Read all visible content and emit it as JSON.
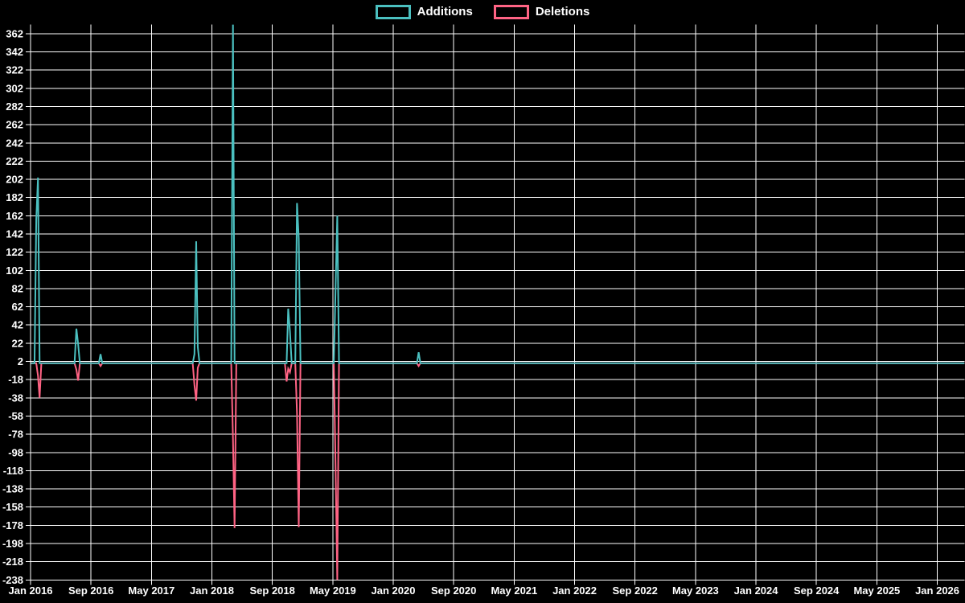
{
  "legend": {
    "items": [
      {
        "label": "Additions",
        "color": "#4bc0c0"
      },
      {
        "label": "Deletions",
        "color": "#ff6384"
      }
    ]
  },
  "chart_data": {
    "type": "line",
    "title": "",
    "background_color": "#000000",
    "grid_color": "#ffffff",
    "text_color": "#ffffff",
    "grid": true,
    "legend_position": "top",
    "x_axis": {
      "start": "2016-01-03",
      "end": "2026-04-19",
      "interval": "weekly",
      "tick_interval_months": 8,
      "tick_labels": [
        "Jan 2016",
        "Sep 2016",
        "May 2017",
        "Jan 2018",
        "Sep 2018",
        "May 2019",
        "Jan 2020",
        "Sep 2020",
        "May 2021",
        "Jan 2022",
        "Sep 2022",
        "May 2023",
        "Jan 2024",
        "Sep 2024",
        "May 2025",
        "Jan 2026"
      ]
    },
    "y_axis": {
      "min": -238,
      "max": 372,
      "tick_step": 20,
      "baseline": 0,
      "tick_labels": [
        "362",
        "342",
        "322",
        "302",
        "282",
        "262",
        "242",
        "222",
        "202",
        "182",
        "162",
        "142",
        "122",
        "102",
        "82",
        "62",
        "42",
        "22",
        "2",
        "-18",
        "-38",
        "-58",
        "-78",
        "-98",
        "-118",
        "-138",
        "-158",
        "-178",
        "-198",
        "-218",
        "-238"
      ]
    },
    "series": [
      {
        "name": "Additions",
        "color": "#4bc0c0",
        "value_key": "additions",
        "default_value": 0
      },
      {
        "name": "Deletions",
        "color": "#ff6384",
        "value_key": "deletions",
        "default_value": 0
      }
    ],
    "events": [
      {
        "date": "2016-01-24",
        "additions": 158,
        "deletions": 0
      },
      {
        "date": "2016-01-31",
        "additions": 204,
        "deletions": -14
      },
      {
        "date": "2016-02-07",
        "additions": 0,
        "deletions": -38
      },
      {
        "date": "2016-07-03",
        "additions": 38,
        "deletions": -7
      },
      {
        "date": "2016-07-10",
        "additions": 21,
        "deletions": -19
      },
      {
        "date": "2016-10-09",
        "additions": 10,
        "deletions": -3
      },
      {
        "date": "2017-10-22",
        "additions": 10,
        "deletions": -24
      },
      {
        "date": "2017-10-29",
        "additions": 134,
        "deletions": -41
      },
      {
        "date": "2017-11-05",
        "additions": 18,
        "deletions": -5
      },
      {
        "date": "2018-03-25",
        "additions": 372,
        "deletions": -83
      },
      {
        "date": "2018-04-01",
        "additions": 0,
        "deletions": -181
      },
      {
        "date": "2018-10-28",
        "additions": 0,
        "deletions": -20
      },
      {
        "date": "2018-11-04",
        "additions": 60,
        "deletions": -6
      },
      {
        "date": "2018-11-11",
        "additions": 35,
        "deletions": -10
      },
      {
        "date": "2018-12-09",
        "additions": 176,
        "deletions": -55
      },
      {
        "date": "2018-12-16",
        "additions": 137,
        "deletions": -180
      },
      {
        "date": "2019-05-12",
        "additions": 80,
        "deletions": -110
      },
      {
        "date": "2019-05-19",
        "additions": 162,
        "deletions": -238
      },
      {
        "date": "2020-04-12",
        "additions": 12,
        "deletions": -3
      }
    ]
  }
}
